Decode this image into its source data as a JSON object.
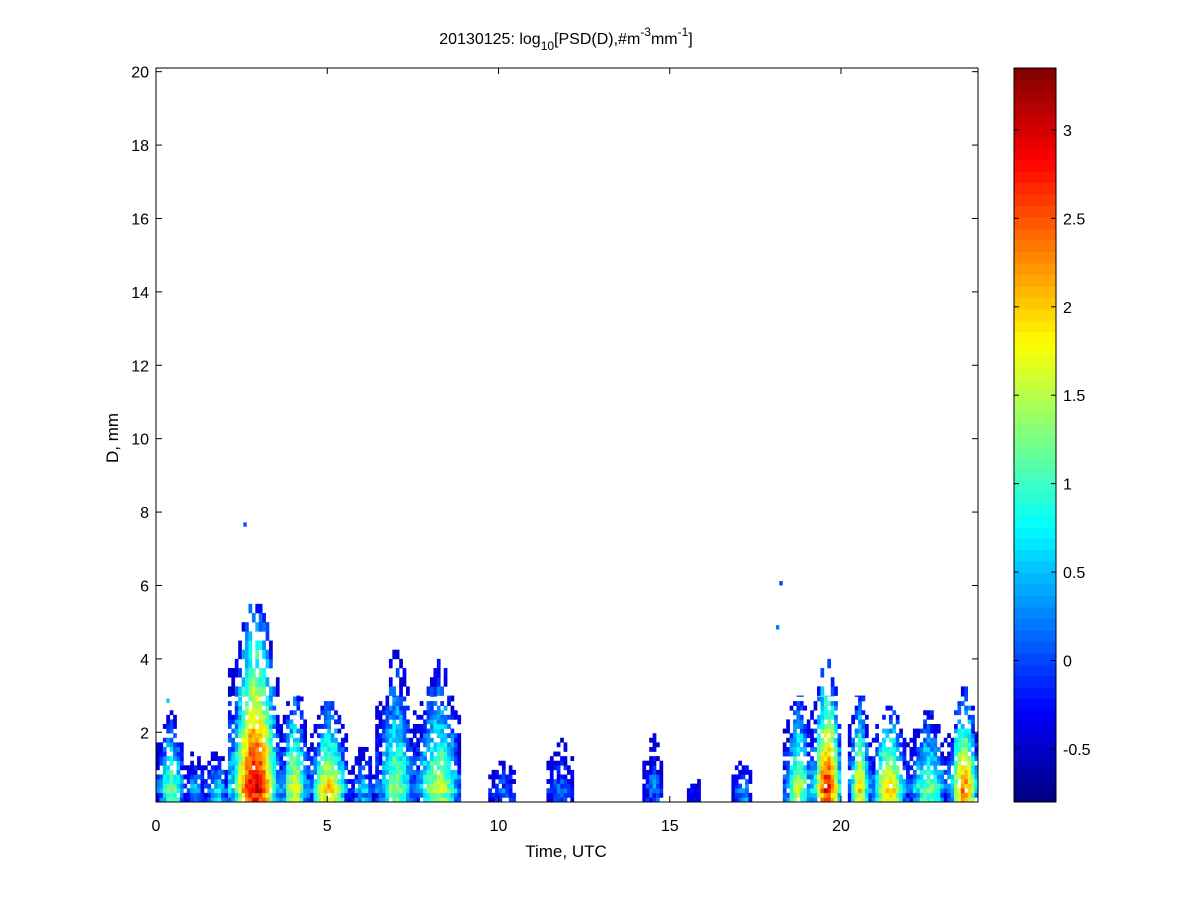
{
  "chart_data": {
    "type": "heatmap",
    "title": {
      "prefix": "20130125: log",
      "sub": "10",
      "mid": "[PSD(D),#m",
      "sup1": "-3",
      "mid2": "mm",
      "sup2": "-1",
      "suffix": "]"
    },
    "xlabel": "Time, UTC",
    "ylabel": "D, mm",
    "xlim": [
      0,
      24
    ],
    "ylim": [
      0.1,
      20.1
    ],
    "xticks": [
      0,
      5,
      10,
      15,
      20
    ],
    "yticks": [
      2,
      4,
      6,
      8,
      10,
      12,
      14,
      16,
      18,
      20
    ],
    "colorbar": {
      "colormap": "jet",
      "clim": [
        -0.8,
        3.35
      ],
      "ticks": [
        "-0.5",
        "0",
        "0.5",
        "1",
        "1.5",
        "2",
        "2.5",
        "3"
      ],
      "tick_values": [
        -0.5,
        0,
        0.5,
        1,
        1.5,
        2,
        2.5,
        3
      ]
    },
    "grid": false,
    "bin_width_hours": 0.1,
    "rain_events": [
      {
        "t0": 0.0,
        "t1": 0.8,
        "peak": 1.7,
        "dmax": 2.6
      },
      {
        "t0": 0.8,
        "t1": 1.4,
        "peak": 0.9,
        "dmax": 1.6
      },
      {
        "t0": 1.4,
        "t1": 2.1,
        "peak": 1.2,
        "dmax": 1.6
      },
      {
        "t0": 2.1,
        "t1": 3.6,
        "peak": 3.3,
        "dmax": 5.6
      },
      {
        "t0": 3.6,
        "t1": 4.4,
        "peak": 2.1,
        "dmax": 3.4
      },
      {
        "t0": 4.4,
        "t1": 5.6,
        "peak": 2.4,
        "dmax": 2.9
      },
      {
        "t0": 5.6,
        "t1": 6.4,
        "peak": 1.0,
        "dmax": 1.6
      },
      {
        "t0": 6.4,
        "t1": 7.5,
        "peak": 1.6,
        "dmax": 4.2
      },
      {
        "t0": 7.5,
        "t1": 8.9,
        "peak": 1.8,
        "dmax": 3.9
      },
      {
        "t0": 9.7,
        "t1": 10.5,
        "peak": 0.6,
        "dmax": 1.3
      },
      {
        "t0": 11.4,
        "t1": 12.2,
        "peak": 0.5,
        "dmax": 1.8
      },
      {
        "t0": 14.2,
        "t1": 14.8,
        "peak": 0.6,
        "dmax": 2.0
      },
      {
        "t0": 15.5,
        "t1": 15.9,
        "peak": 0.3,
        "dmax": 0.9
      },
      {
        "t0": 16.8,
        "t1": 17.4,
        "peak": 1.0,
        "dmax": 1.4
      },
      {
        "t0": 18.3,
        "t1": 19.1,
        "peak": 1.9,
        "dmax": 3.2
      },
      {
        "t0": 19.1,
        "t1": 20.0,
        "peak": 3.2,
        "dmax": 4.0
      },
      {
        "t0": 20.2,
        "t1": 20.8,
        "peak": 2.3,
        "dmax": 3.3
      },
      {
        "t0": 20.8,
        "t1": 21.9,
        "peak": 2.5,
        "dmax": 2.8
      },
      {
        "t0": 21.9,
        "t1": 23.1,
        "peak": 1.6,
        "dmax": 2.7
      },
      {
        "t0": 23.1,
        "t1": 24.0,
        "peak": 2.8,
        "dmax": 3.2
      }
    ],
    "isolated_points": [
      {
        "t": 2.55,
        "d": 7.6,
        "v": 0.1
      },
      {
        "t": 18.2,
        "d": 6.0,
        "v": 0.0
      },
      {
        "t": 18.1,
        "d": 4.8,
        "v": 0.2
      },
      {
        "t": 0.3,
        "d": 2.8,
        "v": 0.6
      }
    ]
  }
}
